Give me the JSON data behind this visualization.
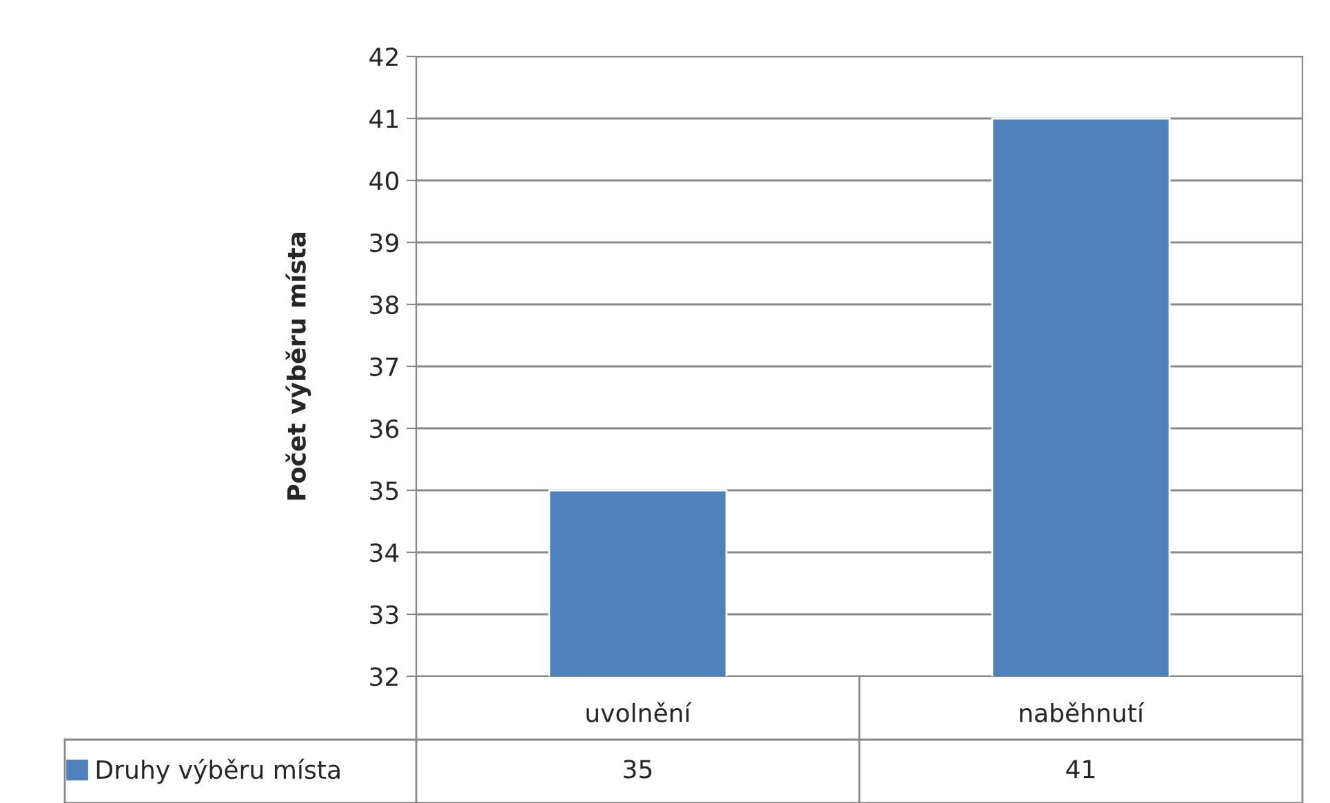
{
  "chart_data": {
    "type": "bar",
    "ylabel": "Počet výběru místa",
    "categories": [
      "uvolnění",
      "naběhnutí"
    ],
    "series": [
      {
        "name": "Druhy výběru místa",
        "color": "#4f81bd",
        "values": [
          35,
          41
        ]
      }
    ],
    "ylim": [
      32,
      42
    ],
    "yticks": [
      32,
      33,
      34,
      35,
      36,
      37,
      38,
      39,
      40,
      41,
      42
    ],
    "grid": "y",
    "legend": "bottom",
    "data_labels": true
  }
}
